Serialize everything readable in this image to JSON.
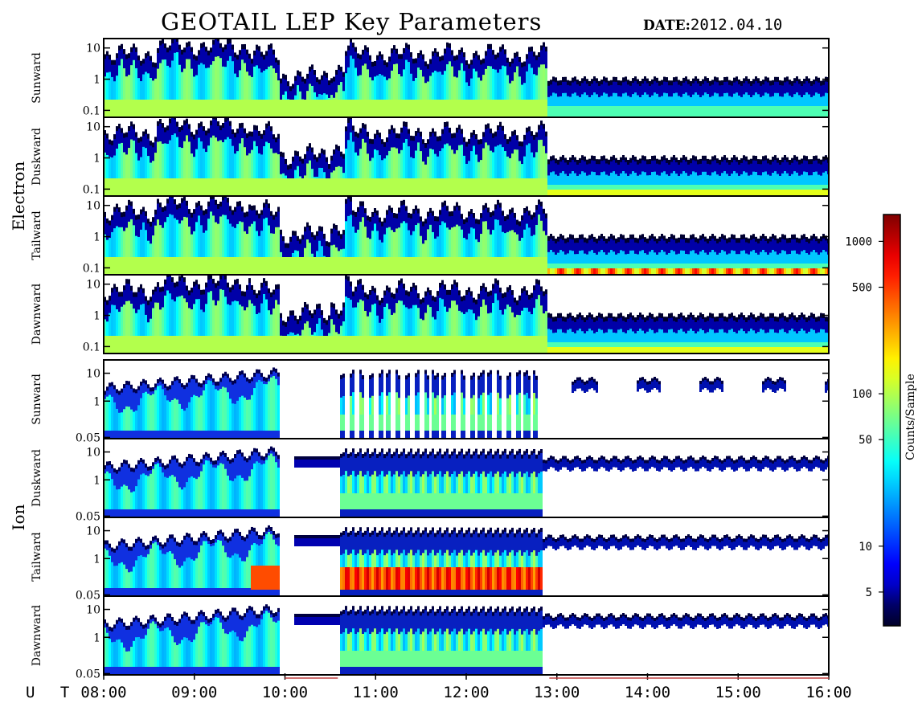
{
  "title": "GEOTAIL LEP Key Parameters",
  "date_label": "DATE:",
  "date_value": "2012.04.10",
  "colorbar": {
    "label": "Counts/Sample",
    "ticks": [
      5,
      10,
      50,
      100,
      500,
      1000
    ],
    "range": [
      3,
      1500
    ],
    "colormap": "jet",
    "scale": "log"
  },
  "chart_data": {
    "type": "heatmap",
    "x_axis": {
      "label": "U T",
      "ticks": [
        "08:00",
        "09:00",
        "10:00",
        "11:00",
        "12:00",
        "13:00",
        "14:00",
        "15:00",
        "16:00"
      ],
      "range": [
        "08:00",
        "16:00"
      ]
    },
    "groups": [
      {
        "name": "Electron",
        "panels": [
          {
            "name": "Sunward",
            "yticks": [
              "10",
              "1",
              "0.1"
            ],
            "yrange": [
              0.06,
              20
            ],
            "yscale": "log"
          },
          {
            "name": "Duskward",
            "yticks": [
              "10",
              "1",
              "0.1"
            ],
            "yrange": [
              0.06,
              20
            ],
            "yscale": "log"
          },
          {
            "name": "Tailward",
            "yticks": [
              "10",
              "1",
              "0.1"
            ],
            "yrange": [
              0.06,
              20
            ],
            "yscale": "log"
          },
          {
            "name": "Dawnward",
            "yticks": [
              "10",
              "1",
              "0.1"
            ],
            "yrange": [
              0.06,
              20
            ],
            "yscale": "log"
          }
        ]
      },
      {
        "name": "Ion",
        "panels": [
          {
            "name": "Sunward",
            "yticks": [
              "10",
              "1",
              "0.05"
            ],
            "yrange": [
              0.045,
              30
            ],
            "yscale": "log"
          },
          {
            "name": "Duskward",
            "yticks": [
              "10",
              "1",
              "0.05"
            ],
            "yrange": [
              0.045,
              30
            ],
            "yscale": "log"
          },
          {
            "name": "Tailward",
            "yticks": [
              "10",
              "1",
              "0.05"
            ],
            "yrange": [
              0.045,
              30
            ],
            "yscale": "log"
          },
          {
            "name": "Dawnward",
            "yticks": [
              "10",
              "1",
              "0.05"
            ],
            "yrange": [
              0.045,
              30
            ],
            "yscale": "log"
          }
        ]
      }
    ],
    "data_gaps_ion": [
      [
        "09:55",
        "10:35"
      ]
    ],
    "features": {
      "electron_active_interval": [
        "08:00",
        "12:55"
      ],
      "electron_quiet_interval": [
        "12:55",
        "16:00"
      ],
      "ion_high_counts_tailward": [
        "10:35",
        "12:50"
      ]
    }
  }
}
